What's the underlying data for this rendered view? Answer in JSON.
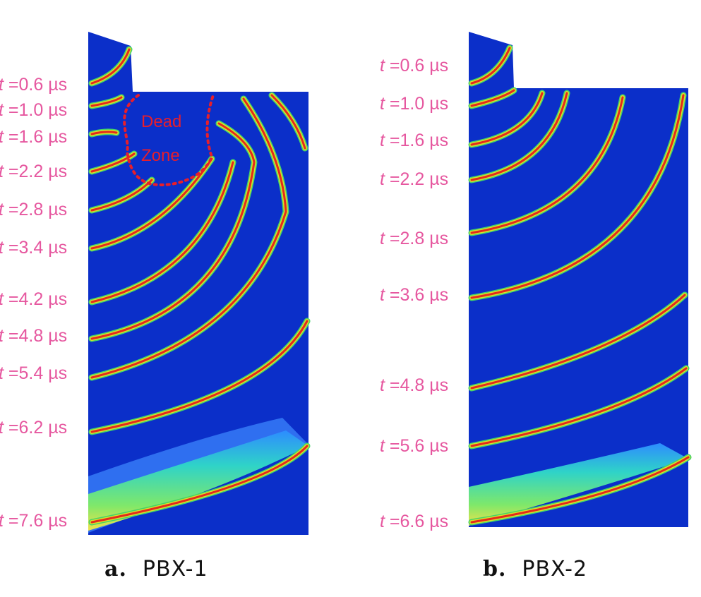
{
  "panel_a": {
    "letter": "a.",
    "name": "PBX-1",
    "dead_zone_line1": "Dead",
    "dead_zone_line2": "Zone",
    "time_labels": [
      "0.6 µs",
      "1.0 µs",
      "1.6 µs",
      "2.2 µs",
      "2.8 µs",
      "3.4 µs",
      "4.2 µs",
      "4.8 µs",
      "5.4 µs",
      "6.2 µs",
      "7.6 µs"
    ]
  },
  "panel_b": {
    "letter": "b.",
    "name": "PBX-2",
    "time_labels": [
      "0.6 µs",
      "1.0 µs",
      "1.6 µs",
      "2.2 µs",
      "2.8 µs",
      "3.6 µs",
      "4.8 µs",
      "5.6 µs",
      "6.6 µs"
    ]
  },
  "label_prefix": "t =",
  "colors": {
    "background": "#0b2fc9",
    "label": "#e6579f",
    "dead_zone": "#e81e2a"
  }
}
